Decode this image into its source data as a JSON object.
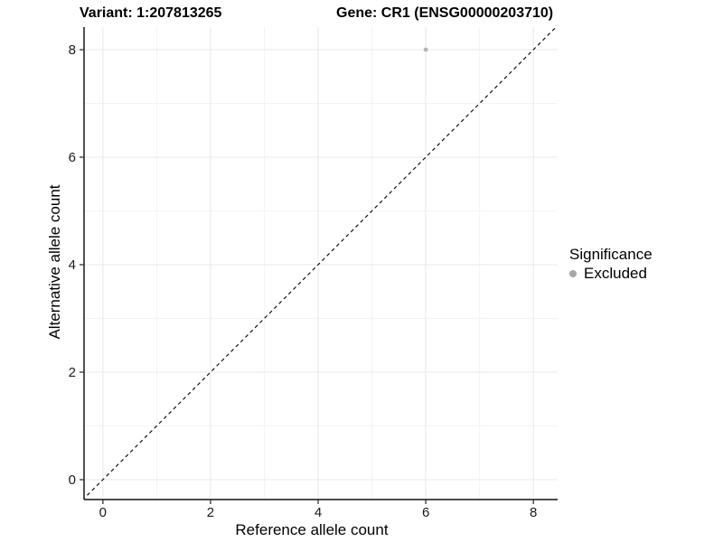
{
  "chart_data": {
    "type": "scatter",
    "titles": {
      "left": "Variant: 1:207813265",
      "right": "Gene: CR1 (ENSG00000203710)"
    },
    "xlabel": "Reference allele count",
    "ylabel": "Alternative allele count",
    "x_ticks": [
      0,
      2,
      4,
      6,
      8
    ],
    "y_ticks": [
      0,
      2,
      4,
      6,
      8
    ],
    "xlim": [
      -0.35,
      8.45
    ],
    "ylim": [
      -0.37,
      8.42
    ],
    "grid": {
      "major": true,
      "minor": true
    },
    "series": [
      {
        "name": "Excluded",
        "color": "#b3b3b3",
        "points": [
          {
            "x": 6,
            "y": 8
          }
        ]
      }
    ],
    "reference_line": {
      "type": "identity",
      "equation": "y = x",
      "style": "dashed",
      "color": "#111111"
    },
    "legend": {
      "title": "Significance",
      "position": "right",
      "entries": [
        {
          "label": "Excluded",
          "color": "#a6a6a6"
        }
      ]
    },
    "colors": {
      "grid_major": "#e8e8e8",
      "grid_minor": "#f3f3f3",
      "axis": "#333333",
      "tick_text": "#1a1a1a",
      "background": "#ffffff"
    }
  }
}
